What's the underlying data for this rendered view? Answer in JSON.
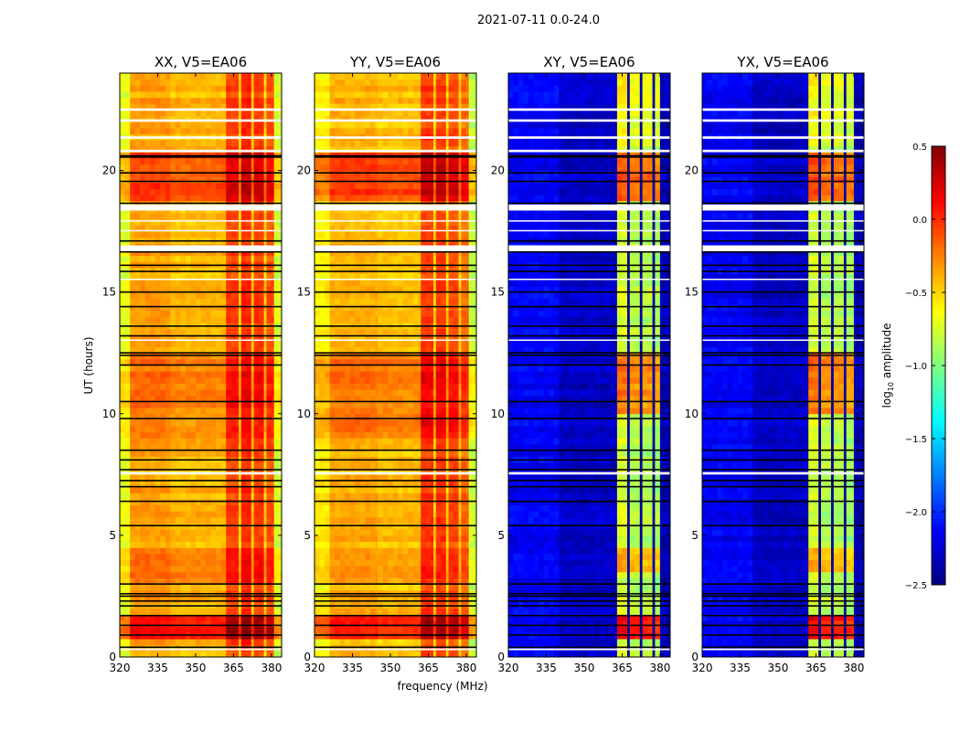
{
  "chart_data": {
    "type": "heatmap",
    "suptitle": "2021-07-11 0.0-24.0",
    "xlabel": "frequency (MHz)",
    "ylabel": "UT (hours)",
    "xlim": [
      320,
      384
    ],
    "ylim": [
      0,
      24
    ],
    "xticks": [
      320,
      335,
      350,
      365,
      380
    ],
    "yticks": [
      0,
      5,
      10,
      15,
      20
    ],
    "colorbar": {
      "label": "log10 amplitude",
      "label_main": "log",
      "label_sub": "10",
      "label_rest": " amplitude",
      "colormap": "jet",
      "range": [
        -2.5,
        0.5
      ],
      "ticks": [
        "0.5",
        "0.0",
        "−0.5",
        "−1.0",
        "−1.5",
        "−2.0",
        "−2.5"
      ],
      "tick_values": [
        0.5,
        0.0,
        -0.5,
        -1.0,
        -1.5,
        -2.0,
        -2.5
      ]
    },
    "flagged_hours_black": [
      20.6,
      20.55,
      19.9,
      19.55,
      18.65,
      17.1,
      16.65,
      16.1,
      15.85,
      15.0,
      14.4,
      13.6,
      13.2,
      12.5,
      12.4,
      12.0,
      10.5,
      9.8,
      8.5,
      8.1,
      7.7,
      7.25,
      7.0,
      6.4,
      5.4,
      3.0,
      2.6,
      2.5,
      2.3,
      2.1,
      1.7,
      1.3,
      0.9,
      0.4
    ],
    "missing_hours_white": [
      [
        22.45,
        22.55
      ],
      [
        22.0,
        22.1
      ],
      [
        21.3,
        21.4
      ],
      [
        20.75,
        20.85
      ],
      [
        18.35,
        18.6
      ],
      [
        17.9,
        17.95
      ],
      [
        17.5,
        17.55
      ],
      [
        16.66,
        16.92
      ],
      [
        15.5,
        15.55
      ],
      [
        13.0,
        13.05
      ],
      [
        7.5,
        7.6
      ],
      [
        0.28,
        0.35
      ]
    ],
    "panels": [
      {
        "title": "XX, V5=EA06",
        "profile": [
          [
            320,
            324,
            -0.7
          ],
          [
            324,
            340,
            -0.35
          ],
          [
            340,
            362,
            -0.42
          ],
          [
            362,
            367,
            -0.08
          ],
          [
            367,
            368,
            -0.5
          ],
          [
            368,
            372,
            0.0
          ],
          [
            372,
            373,
            -0.5
          ],
          [
            373,
            377,
            -0.05
          ],
          [
            377,
            378,
            -0.5
          ],
          [
            378,
            381,
            -0.12
          ],
          [
            381,
            384,
            -0.75
          ]
        ],
        "time_boost": [
          [
            18.7,
            20.6,
            0.3
          ],
          [
            0.7,
            1.6,
            0.45
          ],
          [
            9.0,
            12.3,
            0.15
          ],
          [
            3.0,
            4.5,
            0.15
          ]
        ]
      },
      {
        "title": "YY, V5=EA06",
        "profile": [
          [
            320,
            326,
            -0.6
          ],
          [
            326,
            345,
            -0.4
          ],
          [
            345,
            362,
            -0.45
          ],
          [
            362,
            367,
            -0.05
          ],
          [
            367,
            368,
            -0.5
          ],
          [
            368,
            372,
            -0.05
          ],
          [
            372,
            373,
            -0.5
          ],
          [
            373,
            377,
            -0.1
          ],
          [
            377,
            378,
            -0.5
          ],
          [
            378,
            381,
            -0.2
          ],
          [
            381,
            384,
            -0.8
          ]
        ],
        "time_boost": [
          [
            18.7,
            20.6,
            0.35
          ],
          [
            0.7,
            1.6,
            0.45
          ],
          [
            9.0,
            12.3,
            0.2
          ],
          [
            3.0,
            4.5,
            0.15
          ]
        ]
      },
      {
        "title": "XY, V5=EA06",
        "profile": [
          [
            320,
            340,
            -2.15
          ],
          [
            340,
            363,
            -2.3
          ],
          [
            363,
            367,
            -0.75
          ],
          [
            367,
            368,
            -2.4
          ],
          [
            368,
            372,
            -0.85
          ],
          [
            372,
            373,
            -2.4
          ],
          [
            373,
            377,
            -0.85
          ],
          [
            377,
            378,
            -2.4
          ],
          [
            378,
            380,
            -0.9
          ],
          [
            380,
            384,
            -2.35
          ]
        ],
        "time_boost": [
          [
            18.7,
            20.6,
            0.65
          ],
          [
            0.7,
            1.6,
            0.9
          ],
          [
            10.0,
            12.3,
            0.55
          ],
          [
            3.5,
            4.5,
            0.4
          ],
          [
            21.0,
            24.0,
            0.15
          ]
        ]
      },
      {
        "title": "YX, V5=EA06",
        "profile": [
          [
            320,
            340,
            -2.15
          ],
          [
            340,
            362,
            -2.3
          ],
          [
            362,
            366,
            -0.75
          ],
          [
            366,
            367,
            -2.4
          ],
          [
            367,
            371,
            -0.85
          ],
          [
            371,
            372,
            -2.4
          ],
          [
            372,
            376,
            -0.85
          ],
          [
            376,
            377,
            -2.4
          ],
          [
            377,
            380,
            -0.9
          ],
          [
            380,
            384,
            -2.35
          ]
        ],
        "time_boost": [
          [
            18.7,
            20.6,
            0.65
          ],
          [
            0.7,
            1.6,
            0.9
          ],
          [
            10.0,
            12.3,
            0.55
          ],
          [
            3.5,
            4.5,
            0.4
          ],
          [
            21.0,
            24.0,
            0.15
          ]
        ]
      }
    ]
  }
}
